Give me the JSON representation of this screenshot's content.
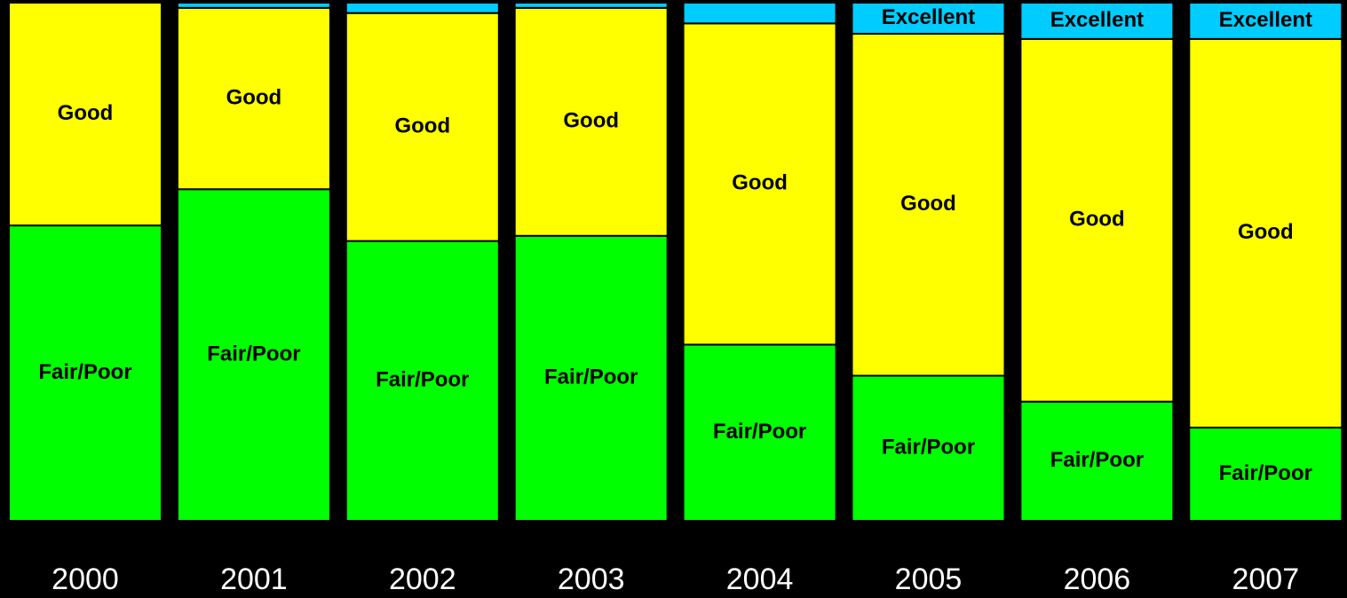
{
  "chart_data": {
    "type": "stacked_bar_100",
    "categories": [
      "2000",
      "2001",
      "2002",
      "2003",
      "2004",
      "2005",
      "2006",
      "2007"
    ],
    "series": [
      {
        "name": "Fair/Poor",
        "color": "#00ff00",
        "values": [
          57,
          64,
          54,
          55,
          34,
          28,
          23,
          18
        ]
      },
      {
        "name": "Good",
        "color": "#ffff00",
        "values": [
          43,
          35,
          44,
          44,
          62,
          66,
          70,
          75
        ]
      },
      {
        "name": "Excellent",
        "color": "#00ccff",
        "values": [
          0,
          1,
          2,
          1,
          4,
          6,
          7,
          7
        ]
      }
    ]
  }
}
